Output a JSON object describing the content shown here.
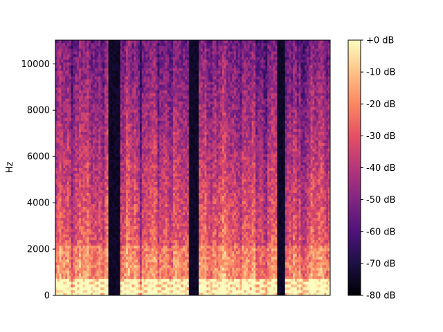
{
  "chart_data": {
    "type": "heatmap",
    "title": "",
    "xlabel": "",
    "ylabel": "Hz",
    "ylim": [
      0,
      11025
    ],
    "y_ticks": [
      0,
      2000,
      4000,
      6000,
      8000,
      10000
    ],
    "y_tick_labels": [
      "0",
      "2000",
      "4000",
      "6000",
      "8000",
      "10000"
    ],
    "x_ticks_shown": false,
    "colormap": "magma",
    "colorbar": {
      "range_db": [
        -80,
        0
      ],
      "ticks": [
        0,
        -10,
        -20,
        -30,
        -40,
        -50,
        -60,
        -70,
        -80
      ],
      "tick_labels": [
        "+0 dB",
        "-10 dB",
        "-20 dB",
        "-30 dB",
        "-40 dB",
        "-50 dB",
        "-60 dB",
        "-70 dB",
        "-80 dB"
      ]
    },
    "silent_segments_fraction_of_duration": [
      [
        0.195,
        0.235
      ],
      [
        0.488,
        0.52
      ],
      [
        0.81,
        0.835
      ]
    ],
    "grid": false
  }
}
